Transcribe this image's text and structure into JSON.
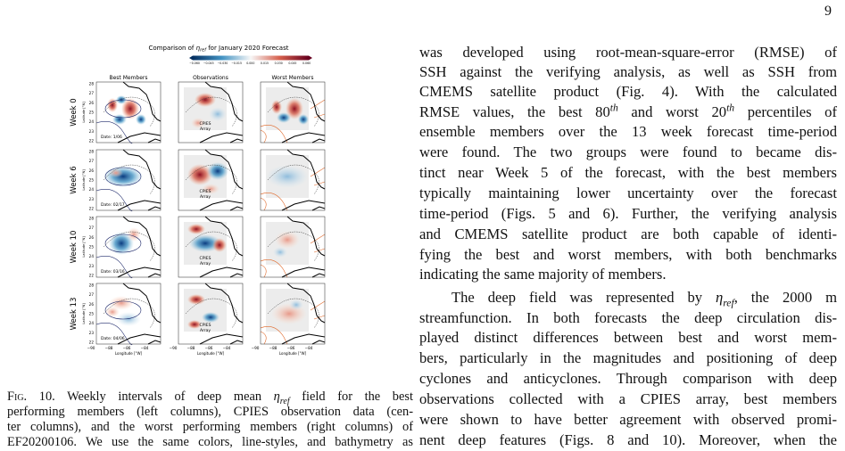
{
  "page_number": "9",
  "figure": {
    "title_start": "Comparison of ",
    "title_eta": "η",
    "title_sub": "ref",
    "title_end": " for January 2020 Forecast",
    "colorbar_ticks": [
      "−0.060",
      "−0.045",
      "−0.030",
      "−0.015",
      "0.000",
      "0.015",
      "0.030",
      "0.045",
      "0.060"
    ],
    "column_titles": [
      "Best Members",
      "Observations",
      "Worst Members"
    ],
    "row_labels": [
      "Week 0",
      "Week 6",
      "Week 10",
      "Week 13"
    ],
    "dates": [
      "Date: 1/06",
      "Date: 02/17",
      "Date: 03/16",
      "Date: 04/06"
    ],
    "cpies_label": [
      "CPIES",
      "Array"
    ],
    "y_ticks": [
      "28",
      "27",
      "26",
      "25",
      "24",
      "23",
      "22"
    ],
    "x_ticks": [
      "−90",
      "−88",
      "−86",
      "−84"
    ],
    "y_axis_label": "Latitude [°N]",
    "x_axis_label": "Longitude [°W]"
  },
  "caption": {
    "lines": [
      [
        "Fig. 10.",
        "  Weekly intervals of deep mean ",
        "η",
        "ref",
        " field for the best"
      ],
      "performing members (left columns), CPIES observation data (cen-",
      "ter columns), and the worst performing members (right columns) of",
      "EF20200106. We use the same colors, line-styles, and bathymetry as"
    ]
  },
  "right_column": {
    "paragraphs": [
      {
        "lines": [
          "was developed using root-mean-square-error (RMSE) of",
          "SSH against the verifying analysis, as well as SSH from",
          "CMEMS satellite product (Fig. 4). With the calculated",
          [
            "RMSE values, the best 80",
            "th",
            " and worst 20",
            "th",
            " percentiles of"
          ],
          "ensemble members over the 13 week forecast time-period",
          "were found. The two groups were found to became dis-",
          "tinct near Week 5 of the forecast, with the best members",
          "typically maintaining lower uncertainty over the forecast",
          "time-period (Figs. 5 and 6). Further, the verifying analysis",
          "and CMEMS satellite product are both capable of identi-",
          "fying the best and worst members, with both benchmarks",
          "indicating the same majority of members."
        ]
      },
      {
        "lines": [
          [
            "The deep field was represented by ",
            "η",
            "ref",
            ", the 2000 m"
          ],
          "streamfunction. In both forecasts the deep circulation dis-",
          "played distinct differences between best and worst mem-",
          "bers, particularly in the magnitudes and positioning of deep",
          "cyclones and anticyclones. Through comparison with deep",
          "observations collected with a CPIES array, best members",
          "were shown to have better agreement with observed promi-",
          "nent deep features (Figs. 8 and 10). Moreover, when the"
        ]
      }
    ]
  }
}
